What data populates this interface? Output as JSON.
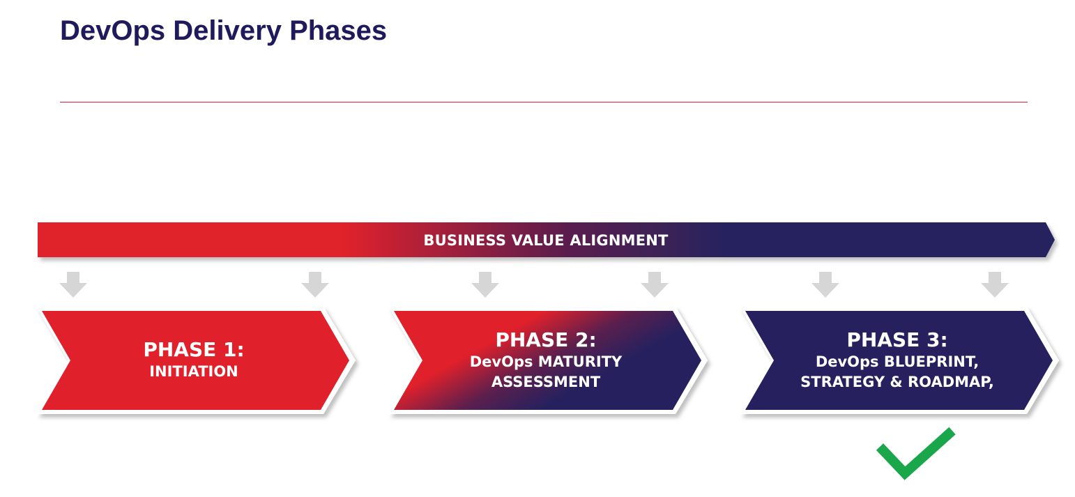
{
  "title": "DevOps Delivery Phases",
  "banner": {
    "label": "BUSINESS VALUE ALIGNMENT"
  },
  "phases": [
    {
      "title": "PHASE 1:",
      "lines": [
        "INITIATION"
      ]
    },
    {
      "title": "PHASE 2:",
      "lines": [
        "DevOps MATURITY",
        "ASSESSMENT"
      ]
    },
    {
      "title": "PHASE 3:",
      "lines": [
        "DevOps BLUEPRINT,",
        "STRATEGY & ROADMAP,"
      ]
    }
  ],
  "colors": {
    "title": "#1f1a5c",
    "red": "#e0202b",
    "navy": "#26215e",
    "divider": "#e0203a",
    "arrow_gray": "#d6d6d6",
    "check": "#1aa64a"
  },
  "status": {
    "completed_icon": "checkmark-icon"
  }
}
